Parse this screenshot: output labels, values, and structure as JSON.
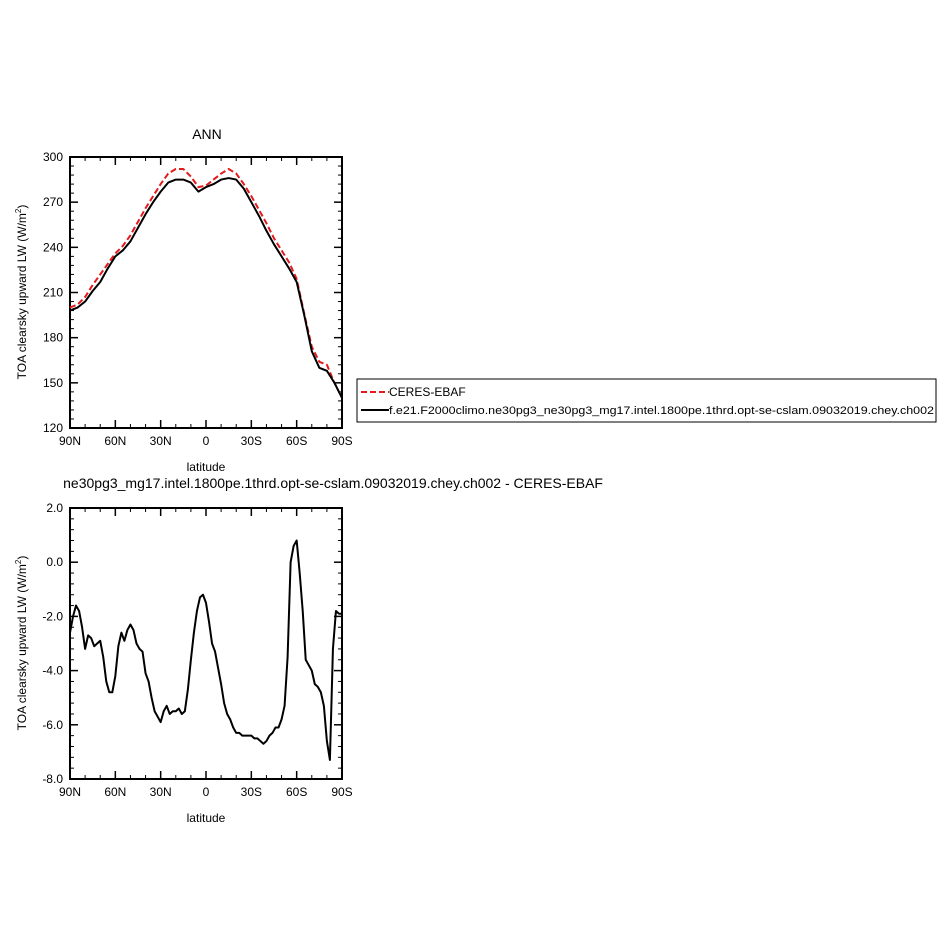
{
  "chart_data": [
    {
      "type": "line",
      "title": "ANN",
      "xlabel": "latitude",
      "ylabel": "TOA clearsky upward LW (W/m",
      "ylabel_sup": "2",
      "ylabel_end": ")",
      "xlim": [
        90,
        -90
      ],
      "ylim": [
        120,
        300
      ],
      "xticks": [
        90,
        60,
        30,
        0,
        -30,
        -60,
        -90
      ],
      "xtick_labels": [
        "90N",
        "60N",
        "30N",
        "0",
        "30S",
        "60S",
        "90S"
      ],
      "yticks": [
        120,
        150,
        180,
        210,
        240,
        270,
        300
      ],
      "ytick_labels": [
        "120",
        "150",
        "180",
        "210",
        "240",
        "270",
        "300"
      ],
      "legend_position": "right",
      "series": [
        {
          "name": "CERES-EBAF",
          "color": "#e41a1c",
          "dash": "dashed",
          "x": [
            90,
            85,
            80,
            75,
            70,
            65,
            60,
            55,
            50,
            45,
            40,
            35,
            30,
            25,
            20,
            15,
            10,
            5,
            0,
            -5,
            -10,
            -15,
            -20,
            -25,
            -30,
            -35,
            -40,
            -45,
            -50,
            -55,
            -60,
            -65,
            -70,
            -75,
            -80,
            -85,
            -90
          ],
          "y": [
            200,
            202,
            207,
            215,
            222,
            229,
            236,
            241,
            248,
            257,
            266,
            274,
            282,
            289,
            292,
            292,
            287,
            280,
            281,
            285,
            289,
            292,
            289,
            282,
            274,
            265,
            256,
            246,
            238,
            230,
            219,
            196,
            174,
            164,
            162,
            150,
            140
          ]
        },
        {
          "name": "f.e21.F2000climo.ne30pg3_ne30pg3_mg17.intel.1800pe.1thrd.opt-se-cslam.09032019.chey.ch002",
          "color": "#000000",
          "dash": "solid",
          "x": [
            90,
            85,
            80,
            75,
            70,
            65,
            60,
            55,
            50,
            45,
            40,
            35,
            30,
            25,
            20,
            15,
            10,
            5,
            0,
            -5,
            -10,
            -15,
            -20,
            -25,
            -30,
            -35,
            -40,
            -45,
            -50,
            -55,
            -60,
            -65,
            -70,
            -75,
            -80,
            -85,
            -90
          ],
          "y": [
            198,
            200,
            204,
            211,
            217,
            226,
            234,
            238,
            244,
            253,
            262,
            270,
            277,
            283,
            285,
            285,
            283,
            277,
            280,
            282,
            285,
            286,
            285,
            279,
            270,
            261,
            251,
            242,
            234,
            226,
            217,
            195,
            171,
            160,
            158,
            150,
            140
          ]
        }
      ]
    },
    {
      "type": "line",
      "title": "ne30pg3_mg17.intel.1800pe.1thrd.opt-se-cslam.09032019.chey.ch002 - CERES-EBAF",
      "xlabel": "latitude",
      "ylabel": "TOA clearsky upward LW (W/m",
      "ylabel_sup": "2",
      "ylabel_end": ")",
      "xlim": [
        90,
        -90
      ],
      "ylim": [
        -8,
        2
      ],
      "xticks": [
        90,
        60,
        30,
        0,
        -30,
        -60,
        -90
      ],
      "xtick_labels": [
        "90N",
        "60N",
        "30N",
        "0",
        "30S",
        "60S",
        "90S"
      ],
      "yticks": [
        -8,
        -6,
        -4,
        -2,
        0,
        2
      ],
      "ytick_labels": [
        "-8.0",
        "-6.0",
        "-4.0",
        "-2.0",
        "0.0",
        "2.0"
      ],
      "series": [
        {
          "color": "#000000",
          "x": [
            90,
            88,
            86,
            84,
            82,
            80,
            78,
            76,
            74,
            72,
            70,
            68,
            66,
            64,
            62,
            60,
            58,
            56,
            54,
            52,
            50,
            48,
            46,
            44,
            42,
            40,
            38,
            36,
            34,
            32,
            30,
            28,
            26,
            24,
            22,
            20,
            18,
            16,
            14,
            12,
            10,
            8,
            6,
            4,
            2,
            0,
            -2,
            -4,
            -6,
            -8,
            -10,
            -12,
            -14,
            -16,
            -18,
            -20,
            -22,
            -24,
            -26,
            -28,
            -30,
            -32,
            -34,
            -36,
            -38,
            -40,
            -42,
            -44,
            -46,
            -48,
            -50,
            -52,
            -54,
            -56,
            -58,
            -60,
            -62,
            -64,
            -66,
            -68,
            -70,
            -72,
            -74,
            -76,
            -78,
            -80,
            -82,
            -84,
            -86,
            -88,
            -90
          ],
          "y": [
            -2.6,
            -2.0,
            -1.6,
            -1.8,
            -2.4,
            -3.2,
            -2.7,
            -2.8,
            -3.1,
            -3.0,
            -2.9,
            -3.5,
            -4.4,
            -4.8,
            -4.8,
            -4.2,
            -3.1,
            -2.6,
            -2.9,
            -2.5,
            -2.3,
            -2.5,
            -3.0,
            -3.2,
            -3.3,
            -4.1,
            -4.4,
            -5.0,
            -5.5,
            -5.7,
            -5.9,
            -5.5,
            -5.3,
            -5.6,
            -5.5,
            -5.5,
            -5.4,
            -5.6,
            -5.5,
            -4.7,
            -3.6,
            -2.6,
            -1.8,
            -1.3,
            -1.2,
            -1.5,
            -2.2,
            -3.0,
            -3.3,
            -3.9,
            -4.5,
            -5.2,
            -5.6,
            -5.8,
            -6.1,
            -6.3,
            -6.3,
            -6.4,
            -6.4,
            -6.4,
            -6.4,
            -6.5,
            -6.5,
            -6.6,
            -6.7,
            -6.6,
            -6.4,
            -6.3,
            -6.1,
            -6.1,
            -5.8,
            -5.3,
            -3.5,
            0.0,
            0.6,
            0.8,
            -0.4,
            -1.8,
            -3.6,
            -3.8,
            -4.0,
            -4.5,
            -4.6,
            -4.8,
            -5.3,
            -6.6,
            -7.3,
            -3.2,
            -1.8,
            -1.9,
            -1.9
          ]
        }
      ]
    }
  ]
}
